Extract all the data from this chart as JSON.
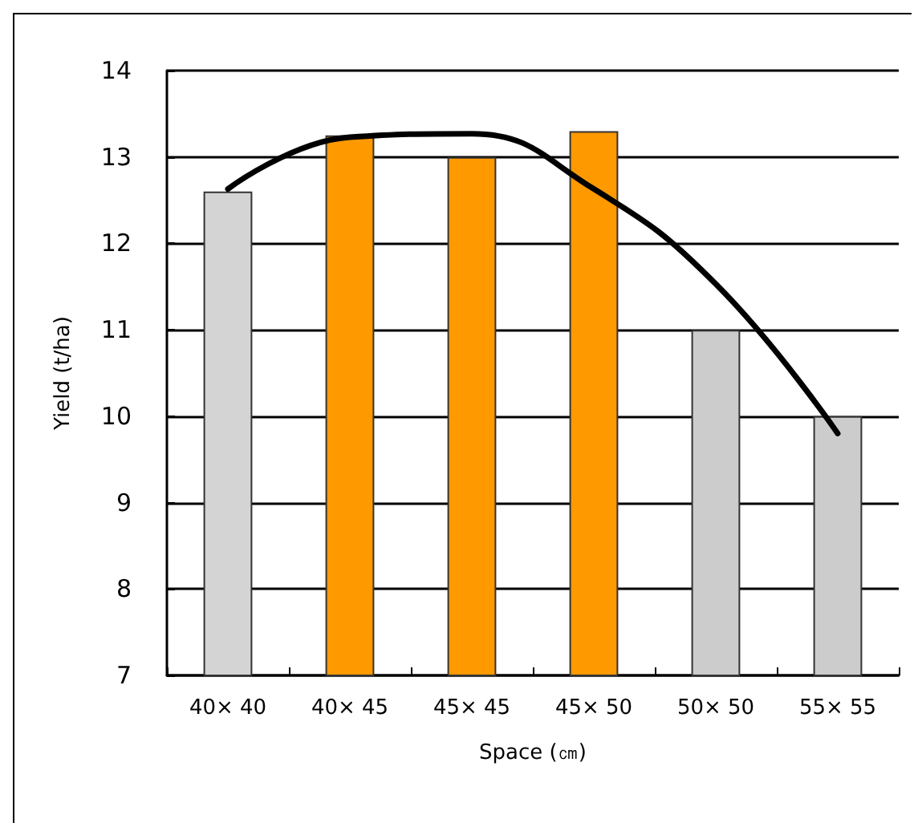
{
  "chart_data": {
    "type": "bar",
    "xlabel": "Space (㎝)",
    "ylabel": "Yield (t/ha)",
    "categories": [
      "40× 40",
      "40× 45",
      "45× 45",
      "45× 50",
      "50× 50",
      "55× 55"
    ],
    "series": [
      {
        "values": [
          12.6,
          13.25,
          13.0,
          13.3,
          11.0,
          10.0
        ],
        "colors": [
          "#d4d4d4",
          "#ff9900",
          "#ff9900",
          "#ff9900",
          "#cccccc",
          "#cccccc"
        ]
      },
      {
        "type": "line",
        "color": "#000000",
        "x": [
          "40× 40",
          "40× 45",
          "45× 45",
          "45× 50",
          "50× 50",
          "55× 55"
        ],
        "values": [
          12.63,
          13.23,
          13.27,
          12.63,
          11.53,
          9.8
        ]
      }
    ],
    "ylim": [
      7,
      14
    ],
    "yticks": [
      7,
      8,
      9,
      10,
      11,
      12,
      13,
      14
    ],
    "grid": "y",
    "marker": "none",
    "line_style": "solid"
  }
}
